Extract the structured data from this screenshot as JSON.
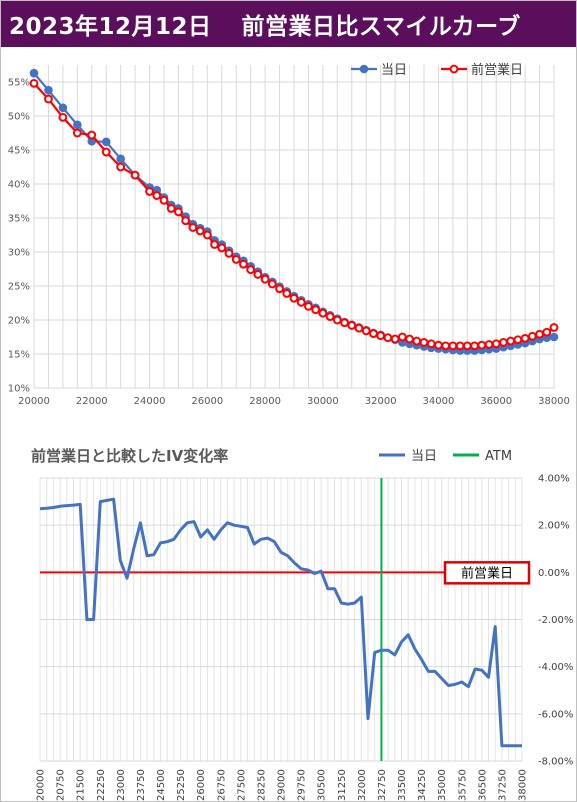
{
  "header": {
    "date": "2023年12月12日",
    "title": "前営業日比スマイルカーブ"
  },
  "colors": {
    "title_bg": "#5b0e5c",
    "today": "#4472c4",
    "prev": "#ff0000",
    "atm": "#00b050",
    "grid": "#d9d9d9"
  },
  "chart_data": [
    {
      "type": "line",
      "title": "",
      "legend": [
        "当日",
        "前営業日"
      ],
      "legend_position": "top-right",
      "grid": true,
      "xlim": [
        20000,
        38000
      ],
      "ylim": [
        10,
        57.5
      ],
      "x_ticks": [
        "20000",
        "22000",
        "24000",
        "26000",
        "28000",
        "30000",
        "32000",
        "34000",
        "36000",
        "38000"
      ],
      "y_ticks": [
        "10%",
        "15%",
        "20%",
        "25%",
        "30%",
        "35%",
        "40%",
        "45%",
        "50%",
        "55%"
      ],
      "series": [
        {
          "name": "当日",
          "color": "#4472c4",
          "points": [
            [
              20000,
              56.3
            ],
            [
              20500,
              53.8
            ],
            [
              21000,
              51.2
            ],
            [
              21500,
              48.7
            ],
            [
              22000,
              46.3
            ],
            [
              22500,
              46.2
            ],
            [
              23000,
              43.7
            ],
            [
              23500,
              41.3
            ],
            [
              24000,
              39.5
            ],
            [
              24250,
              39.1
            ],
            [
              24500,
              38.0
            ],
            [
              24750,
              36.9
            ],
            [
              25000,
              36.4
            ],
            [
              25250,
              35.2
            ],
            [
              25500,
              34.1
            ],
            [
              25750,
              33.5
            ],
            [
              26000,
              33.0
            ],
            [
              26250,
              31.7
            ],
            [
              26500,
              31.1
            ],
            [
              26750,
              30.2
            ],
            [
              27000,
              29.3
            ],
            [
              27250,
              28.7
            ],
            [
              27500,
              27.9
            ],
            [
              27750,
              27.1
            ],
            [
              28000,
              26.3
            ],
            [
              28250,
              25.6
            ],
            [
              28500,
              24.9
            ],
            [
              28750,
              24.2
            ],
            [
              29000,
              23.5
            ],
            [
              29250,
              22.9
            ],
            [
              29500,
              22.3
            ],
            [
              29750,
              21.8
            ],
            [
              30000,
              21.2
            ],
            [
              30250,
              20.7
            ],
            [
              30500,
              20.2
            ],
            [
              30750,
              19.7
            ],
            [
              31000,
              19.3
            ],
            [
              31250,
              18.9
            ],
            [
              31500,
              18.5
            ],
            [
              31750,
              18.1
            ],
            [
              32000,
              17.8
            ],
            [
              32250,
              17.4
            ],
            [
              32500,
              17.1
            ],
            [
              32750,
              16.7
            ],
            [
              33000,
              16.5
            ],
            [
              33250,
              16.3
            ],
            [
              33500,
              16.1
            ],
            [
              33750,
              15.9
            ],
            [
              34000,
              15.8
            ],
            [
              34250,
              15.7
            ],
            [
              34500,
              15.6
            ],
            [
              34750,
              15.5
            ],
            [
              35000,
              15.5
            ],
            [
              35250,
              15.5
            ],
            [
              35500,
              15.6
            ],
            [
              35750,
              15.7
            ],
            [
              36000,
              15.8
            ],
            [
              36250,
              16.0
            ],
            [
              36500,
              16.2
            ],
            [
              36750,
              16.4
            ],
            [
              37000,
              16.6
            ],
            [
              37250,
              16.9
            ],
            [
              37500,
              17.2
            ],
            [
              37750,
              17.4
            ],
            [
              38000,
              17.5
            ]
          ]
        },
        {
          "name": "前営業日",
          "color": "#ff0000",
          "points": [
            [
              20000,
              54.8
            ],
            [
              20500,
              52.5
            ],
            [
              21000,
              49.8
            ],
            [
              21500,
              47.5
            ],
            [
              22000,
              47.2
            ],
            [
              22500,
              44.7
            ],
            [
              23000,
              42.5
            ],
            [
              23500,
              41.3
            ],
            [
              24000,
              38.9
            ],
            [
              24250,
              38.3
            ],
            [
              24500,
              37.6
            ],
            [
              24750,
              36.4
            ],
            [
              25000,
              35.9
            ],
            [
              25250,
              34.6
            ],
            [
              25500,
              33.6
            ],
            [
              25750,
              33.1
            ],
            [
              26000,
              32.5
            ],
            [
              26250,
              31.1
            ],
            [
              26500,
              30.6
            ],
            [
              26750,
              29.8
            ],
            [
              27000,
              28.9
            ],
            [
              27250,
              28.2
            ],
            [
              27500,
              27.4
            ],
            [
              27750,
              26.7
            ],
            [
              28000,
              26.0
            ],
            [
              28250,
              25.3
            ],
            [
              28500,
              24.6
            ],
            [
              28750,
              23.9
            ],
            [
              29000,
              23.2
            ],
            [
              29250,
              22.6
            ],
            [
              29500,
              22.0
            ],
            [
              29750,
              21.5
            ],
            [
              30000,
              21.0
            ],
            [
              30250,
              20.5
            ],
            [
              30500,
              20.0
            ],
            [
              30750,
              19.6
            ],
            [
              31000,
              19.2
            ],
            [
              31250,
              18.8
            ],
            [
              31500,
              18.4
            ],
            [
              31750,
              18.0
            ],
            [
              32000,
              17.7
            ],
            [
              32250,
              17.4
            ],
            [
              32500,
              17.2
            ],
            [
              32750,
              17.5
            ],
            [
              33000,
              17.2
            ],
            [
              33250,
              16.9
            ],
            [
              33500,
              16.7
            ],
            [
              33750,
              16.5
            ],
            [
              34000,
              16.3
            ],
            [
              34250,
              16.2
            ],
            [
              34500,
              16.2
            ],
            [
              34750,
              16.2
            ],
            [
              35000,
              16.2
            ],
            [
              35250,
              16.2
            ],
            [
              35500,
              16.3
            ],
            [
              35750,
              16.4
            ],
            [
              36000,
              16.5
            ],
            [
              36250,
              16.7
            ],
            [
              36500,
              16.9
            ],
            [
              36750,
              17.1
            ],
            [
              37000,
              17.3
            ],
            [
              37250,
              17.6
            ],
            [
              37500,
              17.9
            ],
            [
              37750,
              18.2
            ],
            [
              38000,
              18.9
            ]
          ]
        }
      ]
    },
    {
      "type": "line",
      "title": "前営業日と比較したIV変化率",
      "legend": [
        "当日",
        "ATM"
      ],
      "legend_position": "top-right",
      "grid": true,
      "ylim": [
        -8,
        4
      ],
      "y_ticks": [
        "4.00%",
        "2.00%",
        "0.00%",
        "-2.00%",
        "-4.00%",
        "-6.00%",
        "-8.00%"
      ],
      "categories": [
        20000,
        20250,
        20500,
        20750,
        21000,
        21250,
        21500,
        21750,
        22000,
        22250,
        22500,
        22750,
        23000,
        23250,
        23500,
        23750,
        24000,
        24250,
        24500,
        24750,
        25000,
        25250,
        25500,
        25750,
        26000,
        26250,
        26500,
        26750,
        27000,
        27250,
        27500,
        27750,
        28000,
        28250,
        28500,
        28750,
        29000,
        29250,
        29500,
        29750,
        30000,
        30250,
        30500,
        30750,
        31000,
        31250,
        31500,
        31750,
        32000,
        32250,
        32500,
        32750,
        33000,
        33250,
        33500,
        33750,
        34000,
        34250,
        34500,
        34750,
        35000,
        35250,
        35500,
        35750,
        36000,
        36250,
        36500,
        36750,
        37000,
        37250,
        37500,
        37750,
        38000
      ],
      "tick_labels": [
        "20000",
        "20750",
        "21500",
        "22250",
        "23000",
        "23750",
        "24500",
        "25250",
        "26000",
        "26750",
        "27500",
        "28250",
        "29000",
        "29750",
        "30500",
        "31250",
        "32000",
        "32750",
        "33500",
        "34250",
        "35000",
        "35750",
        "36500",
        "37250",
        "38000"
      ],
      "series": [
        {
          "name": "当日",
          "color": "#4472c4",
          "values": [
            2.7,
            2.72,
            2.75,
            2.8,
            2.83,
            2.85,
            2.88,
            -2.0,
            -2.0,
            3.0,
            3.05,
            3.1,
            0.5,
            -0.25,
            1.0,
            2.1,
            0.7,
            0.75,
            1.25,
            1.3,
            1.4,
            1.8,
            2.1,
            2.15,
            1.5,
            1.8,
            1.4,
            1.8,
            2.1,
            2.0,
            1.95,
            1.9,
            1.2,
            1.4,
            1.45,
            1.3,
            0.85,
            0.7,
            0.4,
            0.15,
            0.1,
            -0.05,
            0.05,
            -0.7,
            -0.7,
            -1.3,
            -1.35,
            -1.3,
            -1.05,
            -6.2,
            -3.4,
            -3.3,
            -3.3,
            -3.5,
            -2.95,
            -2.65,
            -3.25,
            -3.7,
            -4.2,
            -4.2,
            -4.5,
            -4.8,
            -4.75,
            -4.65,
            -4.85,
            -4.1,
            -4.15,
            -4.45,
            -2.3,
            -7.35,
            -7.35,
            -7.35,
            -7.35
          ]
        },
        {
          "name": "前営業日",
          "color": "#ff0000",
          "value": 0
        },
        {
          "name": "ATM",
          "color": "#00b050",
          "x": 32750
        }
      ],
      "annotation": "前営業日"
    }
  ]
}
